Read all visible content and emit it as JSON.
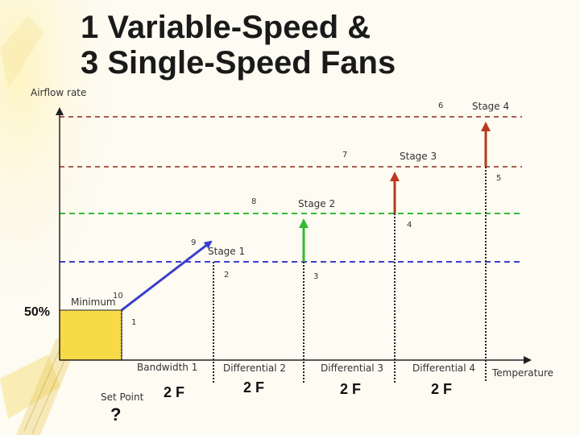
{
  "title": {
    "line1": "1 Variable-Speed &",
    "line2": "3 Single-Speed Fans"
  },
  "axes": {
    "y_label": "Airflow rate",
    "x_label": "Temperature"
  },
  "minimum_percent": "50%",
  "minimum_label": "Minimum",
  "stages": [
    "Stage 1",
    "Stage 2",
    "Stage 3",
    "Stage 4"
  ],
  "points": [
    "1",
    "2",
    "3",
    "4",
    "5",
    "6",
    "7",
    "8",
    "9",
    "10"
  ],
  "bands": [
    "Bandwidth 1",
    "Differential 2",
    "Differential 3",
    "Differential 4"
  ],
  "band_values": [
    "2 F",
    "2 F",
    "2 F",
    "2 F"
  ],
  "set_point": {
    "label": "Set Point",
    "value": "?"
  },
  "colors": {
    "minimum_fill": "#f8d948",
    "stage1": "#3a3fcc",
    "stage2": "#33bb33",
    "stage3": "#b83a1c",
    "stage4": "#b83a1c",
    "brown_line": "#8b2a1a"
  }
}
